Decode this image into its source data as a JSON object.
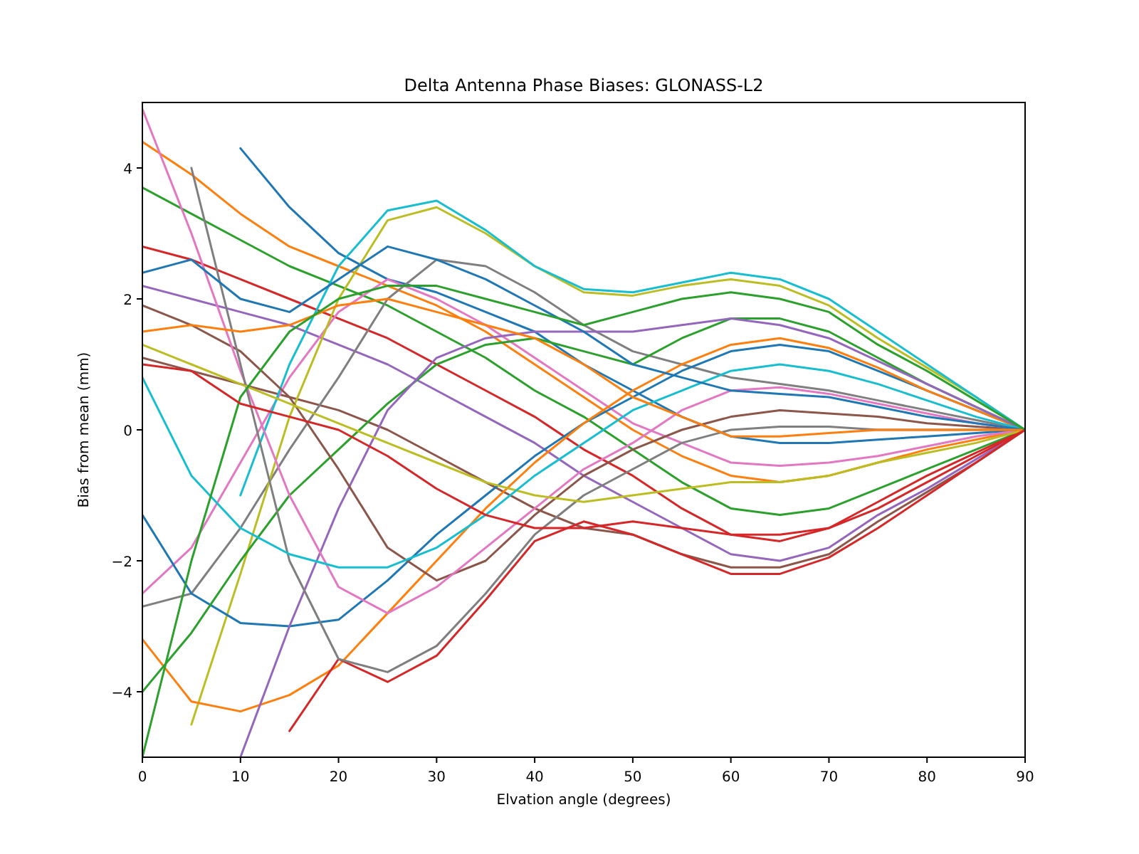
{
  "chart_data": {
    "type": "line",
    "title": "Delta Antenna Phase Biases: GLONASS-L2",
    "xlabel": "Elvation angle (degrees)",
    "ylabel": "Bias from mean (mm)",
    "x": [
      0,
      5,
      10,
      15,
      20,
      25,
      30,
      35,
      40,
      45,
      50,
      55,
      60,
      65,
      70,
      75,
      80,
      85,
      90
    ],
    "xlim": [
      0,
      90
    ],
    "xticks": [
      0,
      10,
      20,
      30,
      40,
      50,
      60,
      70,
      80,
      90
    ],
    "ylim": [
      -5,
      5
    ],
    "yticks": [
      -4,
      -2,
      0,
      2,
      4
    ],
    "grid": false,
    "marker": "none",
    "line_style": "solid",
    "series": [
      {
        "color": "#1f77b4",
        "values": [
          null,
          null,
          4.3,
          3.4,
          2.7,
          2.3,
          2.1,
          1.8,
          1.5,
          1.0,
          0.6,
          0.2,
          -0.1,
          -0.2,
          -0.2,
          -0.15,
          -0.1,
          -0.05,
          0
        ]
      },
      {
        "color": "#ff7f0e",
        "values": [
          4.4,
          3.9,
          3.3,
          2.8,
          2.5,
          2.2,
          1.9,
          1.5,
          1.0,
          0.5,
          0.0,
          -0.4,
          -0.7,
          -0.8,
          -0.7,
          -0.5,
          -0.3,
          -0.15,
          0
        ]
      },
      {
        "color": "#2ca02c",
        "values": [
          3.7,
          3.3,
          2.9,
          2.5,
          2.2,
          1.9,
          1.5,
          1.1,
          0.6,
          0.2,
          -0.3,
          -0.8,
          -1.2,
          -1.3,
          -1.2,
          -0.9,
          -0.6,
          -0.3,
          0
        ]
      },
      {
        "color": "#d62728",
        "values": [
          2.8,
          2.6,
          2.3,
          2.0,
          1.7,
          1.4,
          1.0,
          0.6,
          0.2,
          -0.3,
          -0.7,
          -1.2,
          -1.6,
          -1.7,
          -1.5,
          -1.1,
          -0.7,
          -0.35,
          0
        ]
      },
      {
        "color": "#9467bd",
        "values": [
          2.2,
          2.0,
          1.8,
          1.6,
          1.3,
          1.0,
          0.6,
          0.2,
          -0.2,
          -0.7,
          -1.1,
          -1.5,
          -1.9,
          -2.0,
          -1.8,
          -1.3,
          -0.9,
          -0.45,
          0
        ]
      },
      {
        "color": "#8c564b",
        "values": [
          1.1,
          0.9,
          0.7,
          0.5,
          0.3,
          0.0,
          -0.4,
          -0.8,
          -1.2,
          -1.5,
          -1.6,
          -1.9,
          -2.1,
          -2.1,
          -1.9,
          -1.4,
          -0.95,
          -0.5,
          0
        ]
      },
      {
        "color": "#e377c2",
        "values": [
          -2.5,
          -1.8,
          -0.5,
          0.8,
          1.8,
          2.3,
          2.0,
          1.6,
          1.1,
          0.6,
          0.1,
          -0.2,
          -0.5,
          -0.55,
          -0.5,
          -0.4,
          -0.25,
          -0.1,
          0
        ]
      },
      {
        "color": "#7f7f7f",
        "values": [
          -2.7,
          -2.5,
          -1.5,
          -0.3,
          0.8,
          2.0,
          2.6,
          2.5,
          2.1,
          1.6,
          1.2,
          1.0,
          0.8,
          0.7,
          0.6,
          0.45,
          0.3,
          0.15,
          0
        ]
      },
      {
        "color": "#bcbd22",
        "values": [
          null,
          -4.5,
          -2.2,
          0.2,
          2.0,
          3.2,
          3.4,
          3.0,
          2.5,
          2.1,
          2.05,
          2.2,
          2.3,
          2.2,
          1.9,
          1.4,
          0.95,
          0.5,
          0
        ]
      },
      {
        "color": "#17becf",
        "values": [
          null,
          null,
          -1.0,
          1.0,
          2.5,
          3.35,
          3.5,
          3.05,
          2.5,
          2.15,
          2.1,
          2.25,
          2.4,
          2.3,
          2.0,
          1.5,
          1.0,
          0.5,
          0
        ]
      },
      {
        "color": "#1f77b4",
        "values": [
          -1.3,
          -2.5,
          -2.95,
          -3.0,
          -2.9,
          -2.3,
          -1.6,
          -1.0,
          -0.4,
          0.1,
          0.5,
          0.9,
          1.2,
          1.3,
          1.2,
          0.9,
          0.6,
          0.3,
          0
        ]
      },
      {
        "color": "#ff7f0e",
        "values": [
          -3.2,
          -4.15,
          -4.3,
          -4.05,
          -3.6,
          -2.8,
          -2.0,
          -1.2,
          -0.5,
          0.1,
          0.6,
          1.0,
          1.3,
          1.4,
          1.25,
          0.95,
          0.6,
          0.3,
          0
        ]
      },
      {
        "color": "#2ca02c",
        "values": [
          -4.0,
          -3.1,
          -2.0,
          -1.0,
          -0.3,
          0.4,
          1.0,
          1.3,
          1.4,
          1.2,
          1.0,
          1.4,
          1.7,
          1.7,
          1.5,
          1.1,
          0.7,
          0.35,
          0
        ]
      },
      {
        "color": "#d62728",
        "values": [
          null,
          null,
          null,
          -4.6,
          -3.5,
          -3.85,
          -3.45,
          -2.6,
          -1.7,
          -1.4,
          -1.6,
          -1.9,
          -2.2,
          -2.2,
          -1.95,
          -1.5,
          -1.0,
          -0.5,
          0
        ]
      },
      {
        "color": "#9467bd",
        "values": [
          null,
          null,
          -5.0,
          -3.0,
          -1.2,
          0.3,
          1.1,
          1.4,
          1.5,
          1.5,
          1.5,
          1.6,
          1.7,
          1.6,
          1.4,
          1.05,
          0.7,
          0.35,
          0
        ]
      },
      {
        "color": "#8c564b",
        "values": [
          1.9,
          1.6,
          1.2,
          0.5,
          -0.6,
          -1.8,
          -2.3,
          -2.0,
          -1.3,
          -0.7,
          -0.3,
          0.0,
          0.2,
          0.3,
          0.25,
          0.2,
          0.1,
          0.05,
          0
        ]
      },
      {
        "color": "#e377c2",
        "values": [
          4.9,
          3.0,
          0.9,
          -1.0,
          -2.4,
          -2.8,
          -2.4,
          -1.8,
          -1.2,
          -0.6,
          -0.2,
          0.3,
          0.6,
          0.65,
          0.55,
          0.4,
          0.25,
          0.1,
          0
        ]
      },
      {
        "color": "#7f7f7f",
        "values": [
          null,
          4.0,
          1.0,
          -2.0,
          -3.5,
          -3.7,
          -3.3,
          -2.5,
          -1.6,
          -1.0,
          -0.6,
          -0.2,
          0.0,
          0.05,
          0.05,
          0.0,
          0.0,
          0.0,
          0
        ]
      },
      {
        "color": "#bcbd22",
        "values": [
          1.3,
          1.0,
          0.7,
          0.4,
          0.1,
          -0.2,
          -0.5,
          -0.8,
          -1.0,
          -1.1,
          -1.0,
          -0.9,
          -0.8,
          -0.8,
          -0.7,
          -0.5,
          -0.35,
          -0.2,
          0
        ]
      },
      {
        "color": "#17becf",
        "values": [
          0.8,
          -0.7,
          -1.5,
          -1.9,
          -2.1,
          -2.1,
          -1.8,
          -1.3,
          -0.7,
          -0.2,
          0.3,
          0.6,
          0.9,
          1.0,
          0.9,
          0.7,
          0.45,
          0.2,
          0
        ]
      },
      {
        "color": "#1f77b4",
        "values": [
          2.4,
          2.6,
          2.0,
          1.8,
          2.3,
          2.8,
          2.6,
          2.3,
          1.9,
          1.5,
          1.0,
          0.8,
          0.6,
          0.55,
          0.5,
          0.35,
          0.2,
          0.1,
          0
        ]
      },
      {
        "color": "#ff7f0e",
        "values": [
          1.5,
          1.6,
          1.5,
          1.6,
          1.9,
          2.0,
          1.8,
          1.6,
          1.4,
          1.0,
          0.5,
          0.2,
          -0.1,
          -0.1,
          -0.05,
          0.0,
          0.0,
          0.0,
          0
        ]
      },
      {
        "color": "#2ca02c",
        "values": [
          -5.0,
          -2.0,
          0.5,
          1.5,
          2.0,
          2.2,
          2.2,
          2.0,
          1.8,
          1.6,
          1.8,
          2.0,
          2.1,
          2.0,
          1.8,
          1.3,
          0.9,
          0.45,
          0
        ]
      },
      {
        "color": "#d62728",
        "values": [
          1.0,
          0.9,
          0.4,
          0.2,
          0.0,
          -0.4,
          -0.9,
          -1.3,
          -1.5,
          -1.5,
          -1.4,
          -1.5,
          -1.6,
          -1.6,
          -1.5,
          -1.2,
          -0.8,
          -0.4,
          0
        ]
      }
    ]
  }
}
